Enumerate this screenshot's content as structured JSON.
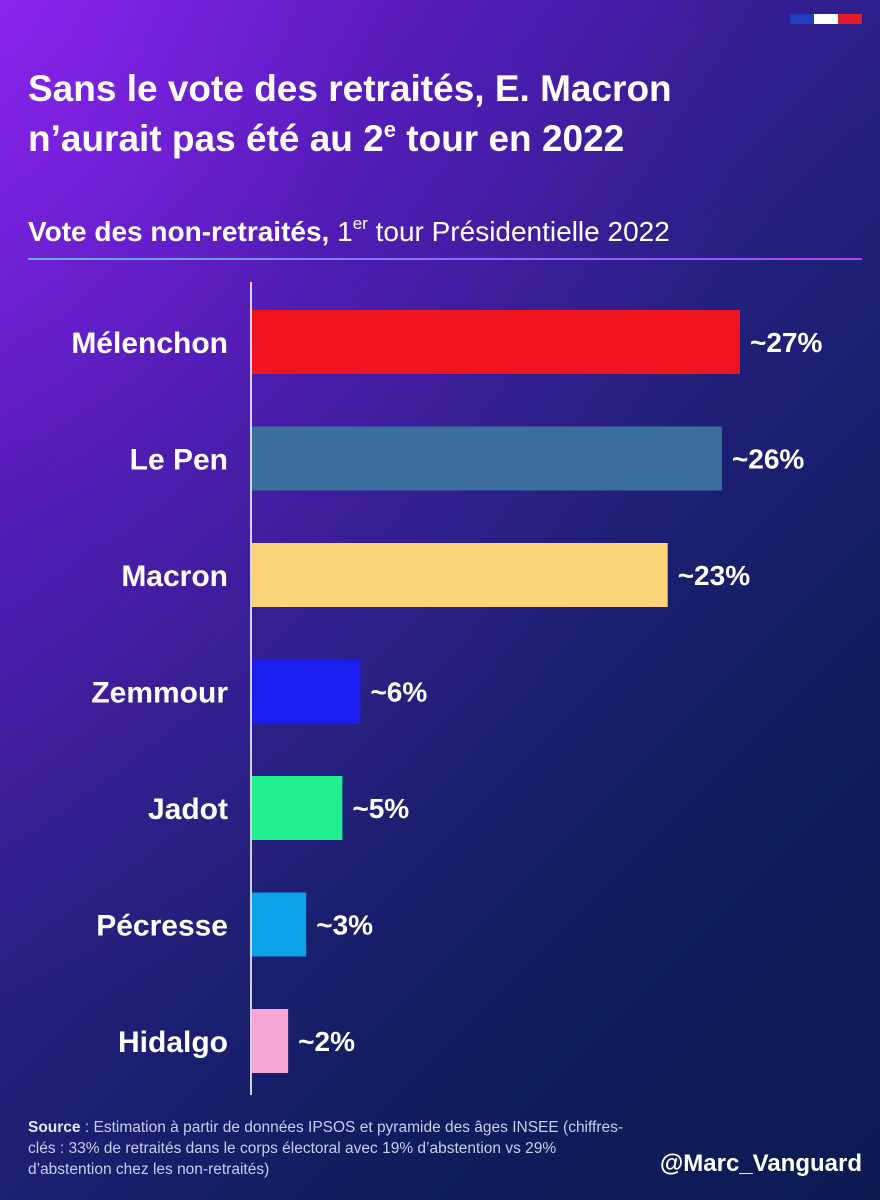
{
  "colors": {
    "flag": [
      "#1f3fbf",
      "#ffffff",
      "#e11b2a"
    ]
  },
  "header": {
    "title_line1": "Sans le vote des retraités, E. Macron",
    "title_line2_pre": "n’aurait pas été au 2",
    "title_line2_sup": "e",
    "title_line2_post": " tour en 2022",
    "subtitle_bold": "Vote des non-retraités,",
    "subtitle_pre": " 1",
    "subtitle_sup": "er",
    "subtitle_post": " tour Présidentielle 2022"
  },
  "chart_data": {
    "type": "bar",
    "orientation": "horizontal",
    "title": "Vote des non-retraités, 1er tour Présidentielle 2022",
    "categories": [
      "Mélenchon",
      "Le Pen",
      "Macron",
      "Zemmour",
      "Jadot",
      "Pécresse",
      "Hidalgo"
    ],
    "values": [
      27,
      26,
      23,
      6,
      5,
      3,
      2
    ],
    "value_labels": [
      "~27%",
      "~26%",
      "~23%",
      "~6%",
      "~5%",
      "~3%",
      "~2%"
    ],
    "colors": [
      "#f0141e",
      "#3a6f9e",
      "#fbd47a",
      "#1a1ff0",
      "#22f08e",
      "#0ba2e8",
      "#f6a6d4"
    ],
    "xlim": [
      0,
      27
    ],
    "grid": false,
    "legend": "none"
  },
  "footer": {
    "source_label": "Source",
    "source_text": " : Estimation à partir de données IPSOS et pyramide des âges INSEE (chiffres-clés : 33% de retraités dans le corps électoral avec 19% d’abstention vs 29% d’abstention chez les non-retraités)",
    "handle": "@Marc_Vanguard"
  }
}
